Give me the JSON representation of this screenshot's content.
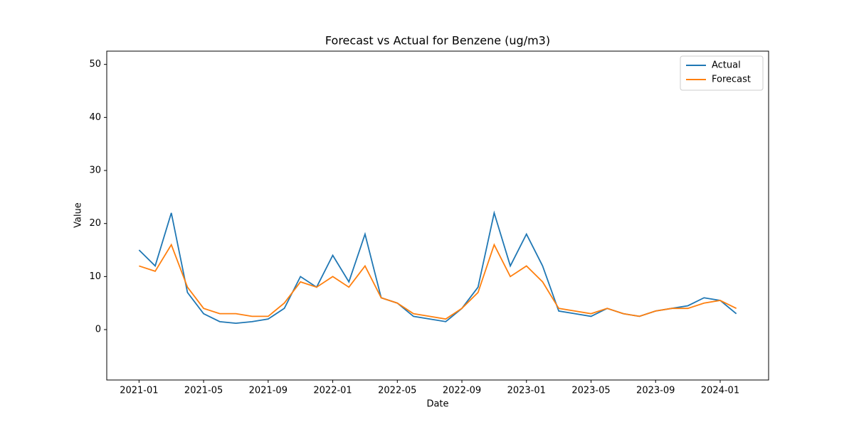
{
  "chart_data": {
    "type": "line",
    "title": "Forecast vs Actual for Benzene (ug/m3)",
    "x_label": "Date",
    "y_label": "Value",
    "x": [
      "2021-01",
      "2021-02",
      "2021-03",
      "2021-04",
      "2021-05",
      "2021-06",
      "2021-07",
      "2021-08",
      "2021-09",
      "2021-10",
      "2021-11",
      "2021-12",
      "2022-01",
      "2022-02",
      "2022-03",
      "2022-04",
      "2022-05",
      "2022-06",
      "2022-07",
      "2022-08",
      "2022-09",
      "2022-10",
      "2022-11",
      "2022-12",
      "2023-01",
      "2023-02",
      "2023-03",
      "2023-04",
      "2023-05",
      "2023-06",
      "2023-07",
      "2023-08",
      "2023-09",
      "2023-10",
      "2023-11",
      "2023-12",
      "2024-01",
      "2024-02"
    ],
    "series": [
      {
        "name": "Actual",
        "color": "#1f77b4",
        "values": [
          15,
          12,
          22,
          7,
          3,
          1.5,
          1.2,
          1.5,
          2,
          4,
          10,
          8,
          14,
          9,
          18,
          6,
          5,
          2.5,
          2,
          1.5,
          4,
          8,
          22,
          12,
          18,
          12,
          3.5,
          3,
          2.5,
          4,
          3,
          2.5,
          3.5,
          4,
          4.5,
          6,
          5.5,
          3
        ]
      },
      {
        "name": "Forecast",
        "color": "#ff7f0e",
        "values": [
          12,
          11,
          16,
          8,
          4,
          3,
          3,
          2.5,
          2.5,
          5,
          9,
          8,
          10,
          8,
          12,
          6,
          5,
          3,
          2.5,
          2,
          4,
          7,
          16,
          10,
          12,
          9,
          4,
          3.5,
          3,
          4,
          3,
          2.5,
          3.5,
          4,
          4,
          5,
          5.5,
          4
        ]
      }
    ],
    "xlim": [
      "2020-11",
      "2024-04"
    ],
    "xticks": [
      "2021-01",
      "2021-05",
      "2021-09",
      "2022-01",
      "2022-05",
      "2022-09",
      "2023-01",
      "2023-05",
      "2023-09",
      "2024-01"
    ],
    "ylim": [
      -9.5,
      52.5
    ],
    "yticks": [
      0,
      10,
      20,
      30,
      40,
      50
    ],
    "legend": "upper right"
  }
}
